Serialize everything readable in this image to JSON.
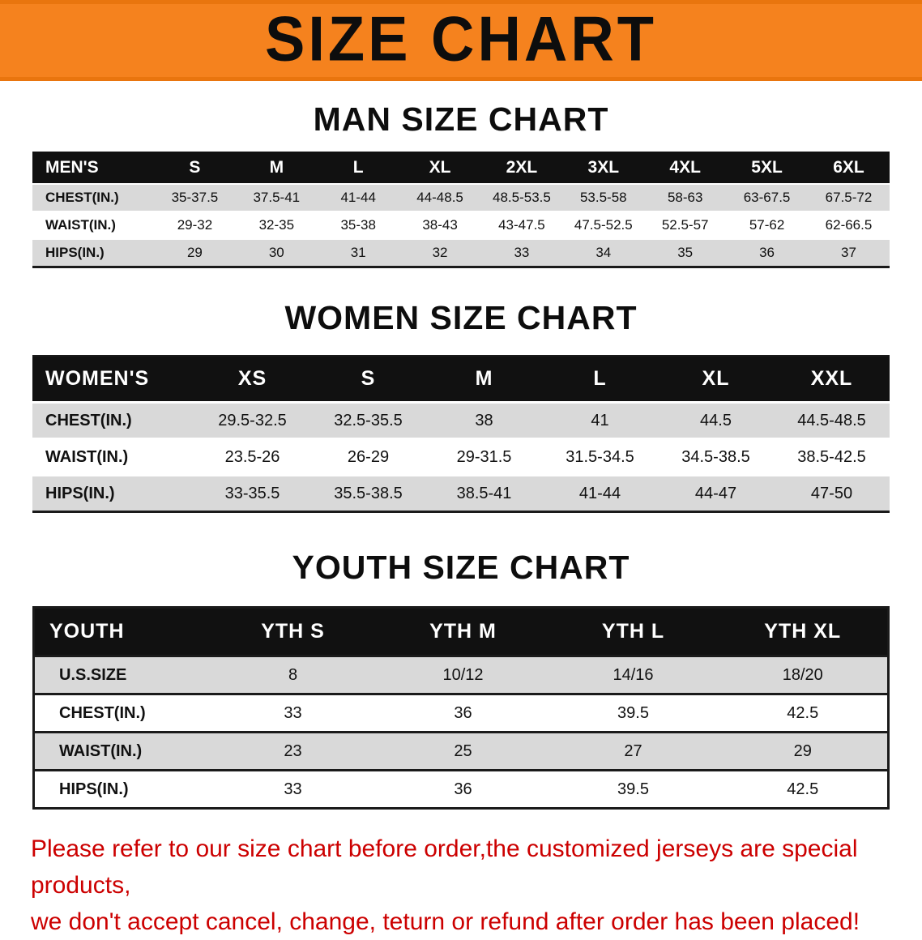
{
  "banner": {
    "title": "SIZE CHART",
    "bg_color": "#f5821e",
    "text_color": "#0d0d0d"
  },
  "chart_data": [
    {
      "type": "table",
      "title": "MAN SIZE CHART",
      "header": [
        "MEN'S",
        "S",
        "M",
        "L",
        "XL",
        "2XL",
        "3XL",
        "4XL",
        "5XL",
        "6XL"
      ],
      "rows": [
        [
          "CHEST(IN.)",
          "35-37.5",
          "37.5-41",
          "41-44",
          "44-48.5",
          "48.5-53.5",
          "53.5-58",
          "58-63",
          "63-67.5",
          "67.5-72"
        ],
        [
          "WAIST(IN.)",
          "29-32",
          "32-35",
          "35-38",
          "38-43",
          "43-47.5",
          "47.5-52.5",
          "52.5-57",
          "57-62",
          "62-66.5"
        ],
        [
          "HIPS(IN.)",
          "29",
          "30",
          "31",
          "32",
          "33",
          "34",
          "35",
          "36",
          "37"
        ]
      ]
    },
    {
      "type": "table",
      "title": "WOMEN SIZE CHART",
      "header": [
        "WOMEN'S",
        "XS",
        "S",
        "M",
        "L",
        "XL",
        "XXL"
      ],
      "rows": [
        [
          "CHEST(IN.)",
          "29.5-32.5",
          "32.5-35.5",
          "38",
          "41",
          "44.5",
          "44.5-48.5"
        ],
        [
          "WAIST(IN.)",
          "23.5-26",
          "26-29",
          "29-31.5",
          "31.5-34.5",
          "34.5-38.5",
          "38.5-42.5"
        ],
        [
          "HIPS(IN.)",
          "33-35.5",
          "35.5-38.5",
          "38.5-41",
          "41-44",
          "44-47",
          "47-50"
        ]
      ]
    },
    {
      "type": "table",
      "title": "YOUTH SIZE CHART",
      "header": [
        "YOUTH",
        "YTH S",
        "YTH M",
        "YTH L",
        "YTH XL"
      ],
      "rows": [
        [
          "U.S.SIZE",
          "8",
          "10/12",
          "14/16",
          "18/20"
        ],
        [
          "CHEST(IN.)",
          "33",
          "36",
          "39.5",
          "42.5"
        ],
        [
          "WAIST(IN.)",
          "23",
          "25",
          "27",
          "29"
        ],
        [
          "HIPS(IN.)",
          "33",
          "36",
          "39.5",
          "42.5"
        ]
      ]
    }
  ],
  "footer": {
    "line1": "Please refer to our size chart before order,the customized jerseys are special products,",
    "line2": "we don't accept cancel, change, teturn or refund after order has been placed!",
    "text_color": "#cc0000"
  },
  "colors": {
    "table_header_bg": "#111111",
    "row_alt_bg": "#d9d9d9"
  }
}
